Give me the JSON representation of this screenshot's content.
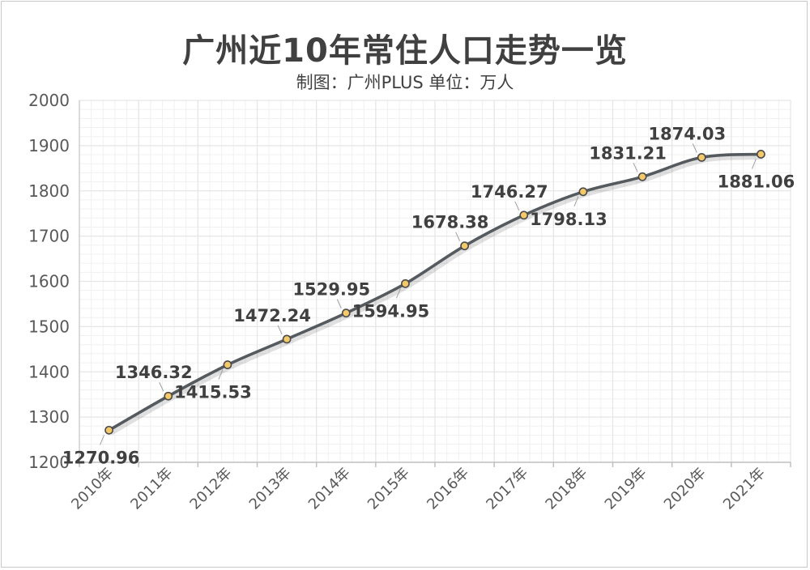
{
  "title": "广州近10年常住人口走势一览",
  "subtitle": "制图：广州PLUS  单位：万人",
  "chart_data": {
    "type": "line",
    "title": "广州近10年常住人口走势一览",
    "subtitle": "制图：广州PLUS  单位：万人",
    "xlabel": "",
    "ylabel": "",
    "categories": [
      "2010年",
      "2011年",
      "2012年",
      "2013年",
      "2014年",
      "2015年",
      "2016年",
      "2017年",
      "2018年",
      "2019年",
      "2020年",
      "2021年"
    ],
    "values": [
      1270.96,
      1346.32,
      1415.53,
      1472.24,
      1529.95,
      1594.95,
      1678.38,
      1746.27,
      1798.13,
      1831.21,
      1874.03,
      1881.06
    ],
    "data_labels": [
      "1270.96",
      "1346.32",
      "1415.53",
      "1472.24",
      "1529.95",
      "1594.95",
      "1678.38",
      "1746.27",
      "1798.13",
      "1831.21",
      "1874.03",
      "1881.06"
    ],
    "label_position": [
      "below",
      "above",
      "below",
      "above",
      "above",
      "below",
      "above",
      "above",
      "below",
      "above",
      "above",
      "below"
    ],
    "ylim": [
      1200,
      2000
    ],
    "yticks": [
      1200,
      1300,
      1400,
      1500,
      1600,
      1700,
      1800,
      1900,
      2000
    ],
    "grid": true,
    "legend": "none",
    "line_color": "#555a5f",
    "marker_color": "#f3c96a",
    "grid_color": "#e6e6e6"
  }
}
